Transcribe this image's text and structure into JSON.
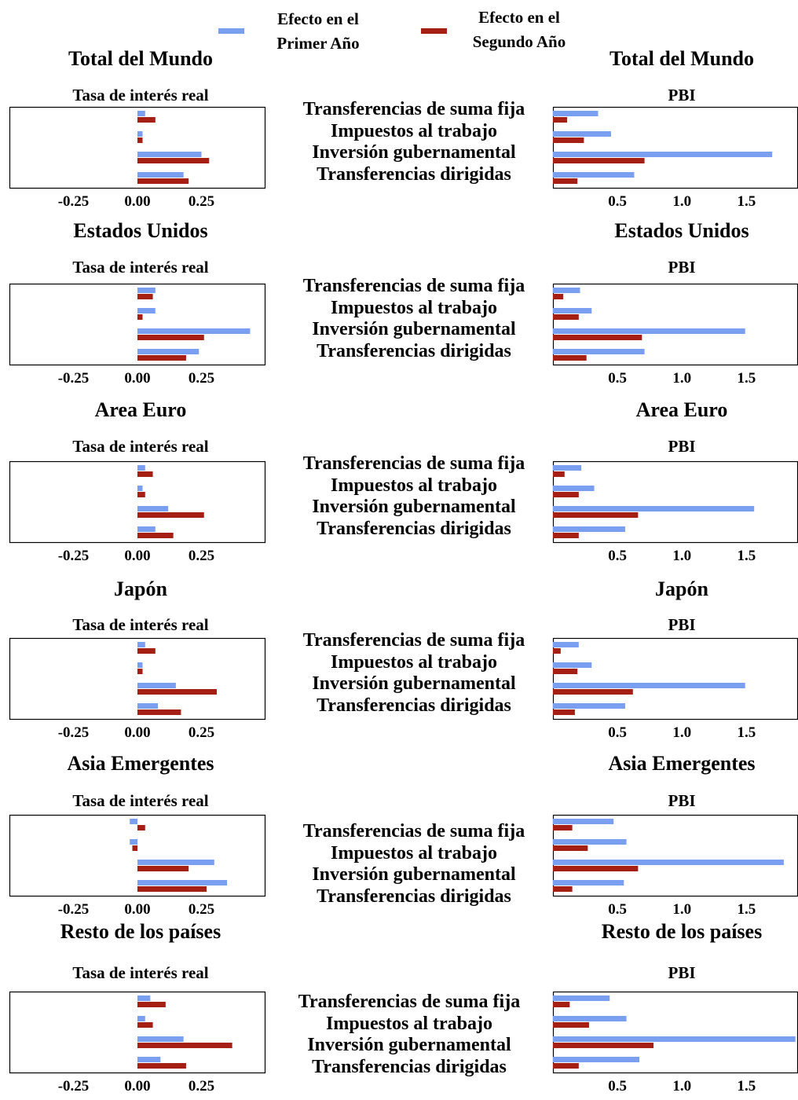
{
  "legend": {
    "first_year": {
      "label": "Efecto en el Primer Año",
      "color": "#7b9ff0"
    },
    "second_year": {
      "label": "Efecto en el Segundo Año",
      "color": "#a51f15"
    }
  },
  "categories": [
    "Transferencias de suma fija",
    "Impuestos al trabajo",
    "Inversión gubernamental",
    "Transferencias dirigidas"
  ],
  "chart_data": [
    {
      "region": "Total del Mundo",
      "panel": "Tasa de interés real",
      "type": "bar",
      "orientation": "horizontal",
      "xlim": [
        -0.5,
        0.5
      ],
      "xticks": [
        "-0.25",
        "0.00",
        "0.25"
      ],
      "series": [
        {
          "name": "Efecto en el Primer Año",
          "values": [
            0.03,
            0.02,
            0.25,
            0.18
          ]
        },
        {
          "name": "Efecto en el Segundo Año",
          "values": [
            0.07,
            0.02,
            0.28,
            0.2
          ]
        }
      ]
    },
    {
      "region": "Total del Mundo",
      "panel": "PBI",
      "type": "bar",
      "orientation": "horizontal",
      "xlim": [
        0,
        1.9
      ],
      "xticks": [
        "0.5",
        "1.0",
        "1.5"
      ],
      "series": [
        {
          "name": "Efecto en el Primer Año",
          "values": [
            0.35,
            0.45,
            1.7,
            0.63
          ]
        },
        {
          "name": "Efecto en el Segundo Año",
          "values": [
            0.11,
            0.24,
            0.71,
            0.19
          ]
        }
      ]
    },
    {
      "region": "Estados Unidos",
      "panel": "Tasa de interés real",
      "type": "bar",
      "orientation": "horizontal",
      "xlim": [
        -0.5,
        0.5
      ],
      "xticks": [
        "-0.25",
        "0.00",
        "0.25"
      ],
      "series": [
        {
          "name": "Efecto en el Primer Año",
          "values": [
            0.07,
            0.07,
            0.44,
            0.24
          ]
        },
        {
          "name": "Efecto en el Segundo Año",
          "values": [
            0.06,
            0.02,
            0.26,
            0.19
          ]
        }
      ]
    },
    {
      "region": "Estados Unidos",
      "panel": "PBI",
      "type": "bar",
      "orientation": "horizontal",
      "xlim": [
        0,
        1.9
      ],
      "xticks": [
        "0.5",
        "1.0",
        "1.5"
      ],
      "series": [
        {
          "name": "Efecto en el Primer Año",
          "values": [
            0.21,
            0.3,
            1.49,
            0.71
          ]
        },
        {
          "name": "Efecto en el Segundo Año",
          "values": [
            0.08,
            0.2,
            0.69,
            0.26
          ]
        }
      ]
    },
    {
      "region": "Area Euro",
      "panel": "Tasa de interés real",
      "type": "bar",
      "orientation": "horizontal",
      "xlim": [
        -0.5,
        0.5
      ],
      "xticks": [
        "-0.25",
        "0.00",
        "0.25"
      ],
      "series": [
        {
          "name": "Efecto en el Primer Año",
          "values": [
            0.03,
            0.02,
            0.12,
            0.07
          ]
        },
        {
          "name": "Efecto en el Segundo Año",
          "values": [
            0.06,
            0.03,
            0.26,
            0.14
          ]
        }
      ]
    },
    {
      "region": "Area Euro",
      "panel": "PBI",
      "type": "bar",
      "orientation": "horizontal",
      "xlim": [
        0,
        1.9
      ],
      "xticks": [
        "0.5",
        "1.0",
        "1.5"
      ],
      "series": [
        {
          "name": "Efecto en el Primer Año",
          "values": [
            0.22,
            0.32,
            1.56,
            0.56
          ]
        },
        {
          "name": "Efecto en el Segundo Año",
          "values": [
            0.09,
            0.2,
            0.66,
            0.2
          ]
        }
      ]
    },
    {
      "region": "Japón",
      "panel": "Tasa de interés real",
      "type": "bar",
      "orientation": "horizontal",
      "xlim": [
        -0.5,
        0.5
      ],
      "xticks": [
        "-0.25",
        "0.00",
        "0.25"
      ],
      "series": [
        {
          "name": "Efecto en el Primer Año",
          "values": [
            0.03,
            0.02,
            0.15,
            0.08
          ]
        },
        {
          "name": "Efecto en el Segundo Año",
          "values": [
            0.07,
            0.02,
            0.31,
            0.17
          ]
        }
      ]
    },
    {
      "region": "Japón",
      "panel": "PBI",
      "type": "bar",
      "orientation": "horizontal",
      "xlim": [
        0,
        1.9
      ],
      "xticks": [
        "0.5",
        "1.0",
        "1.5"
      ],
      "series": [
        {
          "name": "Efecto en el Primer Año",
          "values": [
            0.2,
            0.3,
            1.49,
            0.56
          ]
        },
        {
          "name": "Efecto en el Segundo Año",
          "values": [
            0.06,
            0.19,
            0.62,
            0.17
          ]
        }
      ]
    },
    {
      "region": "Asia Emergentes",
      "panel": "Tasa de interés real",
      "type": "bar",
      "orientation": "horizontal",
      "xlim": [
        -0.5,
        0.5
      ],
      "xticks": [
        "-0.25",
        "0.00",
        "0.25"
      ],
      "series": [
        {
          "name": "Efecto en el Primer Año",
          "values": [
            -0.03,
            -0.03,
            0.3,
            0.35
          ]
        },
        {
          "name": "Efecto en el Segundo Año",
          "values": [
            0.03,
            -0.02,
            0.2,
            0.27
          ]
        }
      ]
    },
    {
      "region": "Asia Emergentes",
      "panel": "PBI",
      "type": "bar",
      "orientation": "horizontal",
      "xlim": [
        0,
        1.9
      ],
      "xticks": [
        "0.5",
        "1.0",
        "1.5"
      ],
      "series": [
        {
          "name": "Efecto en el Primer Año",
          "values": [
            0.47,
            0.57,
            1.79,
            0.55
          ]
        },
        {
          "name": "Efecto en el Segundo Año",
          "values": [
            0.15,
            0.27,
            0.66,
            0.15
          ]
        }
      ]
    },
    {
      "region": "Resto de los países",
      "panel": "Tasa de interés real",
      "type": "bar",
      "orientation": "horizontal",
      "xlim": [
        -0.5,
        0.5
      ],
      "xticks": [
        "-0.25",
        "0.00",
        "0.25"
      ],
      "series": [
        {
          "name": "Efecto en el Primer Año",
          "values": [
            0.05,
            0.03,
            0.18,
            0.09
          ]
        },
        {
          "name": "Efecto en el Segundo Año",
          "values": [
            0.11,
            0.06,
            0.37,
            0.19
          ]
        }
      ]
    },
    {
      "region": "Resto de los países",
      "panel": "PBI",
      "type": "bar",
      "orientation": "horizontal",
      "xlim": [
        0,
        1.9
      ],
      "xticks": [
        "0.5",
        "1.0",
        "1.5"
      ],
      "series": [
        {
          "name": "Efecto en el Primer Año",
          "values": [
            0.44,
            0.57,
            1.88,
            0.67
          ]
        },
        {
          "name": "Efecto en el Segundo Año",
          "values": [
            0.13,
            0.28,
            0.78,
            0.2
          ]
        }
      ]
    }
  ]
}
